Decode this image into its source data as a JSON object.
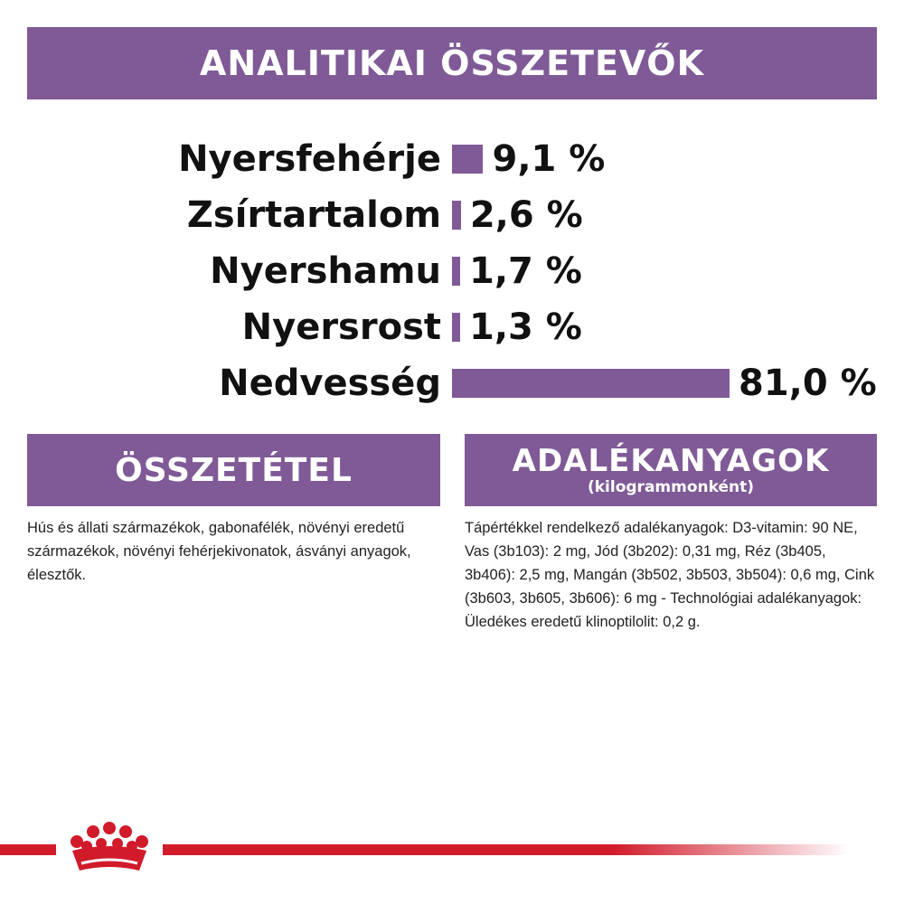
{
  "analytics": {
    "title": "ANALITIKAI ÖSSZETEVŐK"
  },
  "chart_data": {
    "type": "bar",
    "orientation": "horizontal",
    "categories": [
      "Nyersfehérje",
      "Zsírtartalom",
      "Nyershamu",
      "Nyersrost",
      "Nedvesség"
    ],
    "values": [
      9.1,
      2.6,
      1.7,
      1.3,
      81.0
    ],
    "value_labels": [
      "9,1 %",
      "2,6 %",
      "1,7 %",
      "1,3 %",
      "81,0 %"
    ],
    "unit": "%",
    "title": "",
    "xlabel": "",
    "ylabel": "",
    "grid": false,
    "legend": "none",
    "bar_color": "#7f5a97"
  },
  "composition": {
    "title": "ÖSSZETÉTEL",
    "text": "Hús és állati származékok, gabonafélék, növényi eredetű származékok, növényi fehérjekivonatok, ásványi anyagok, élesztők."
  },
  "additives": {
    "title": "ADALÉKANYAGOK",
    "subtitle": "(kilogrammonként)",
    "text": "Tápértékkel rendelkező adalékanyagok: D3-vitamin: 90 NE, Vas (3b103): 2 mg, Jód (3b202): 0,31 mg, Réz (3b405, 3b406): 2,5 mg, Mangán (3b502, 3b503, 3b504): 0,6 mg, Cink (3b603, 3b605, 3b606): 6 mg - Technológiai adalékanyagok: Üledékes eredetű klinoptilolit: 0,2 g."
  },
  "colors": {
    "accent": "#7f5a97",
    "brand_red": "#d11a2a"
  },
  "logo": {
    "icon": "crown-icon"
  }
}
